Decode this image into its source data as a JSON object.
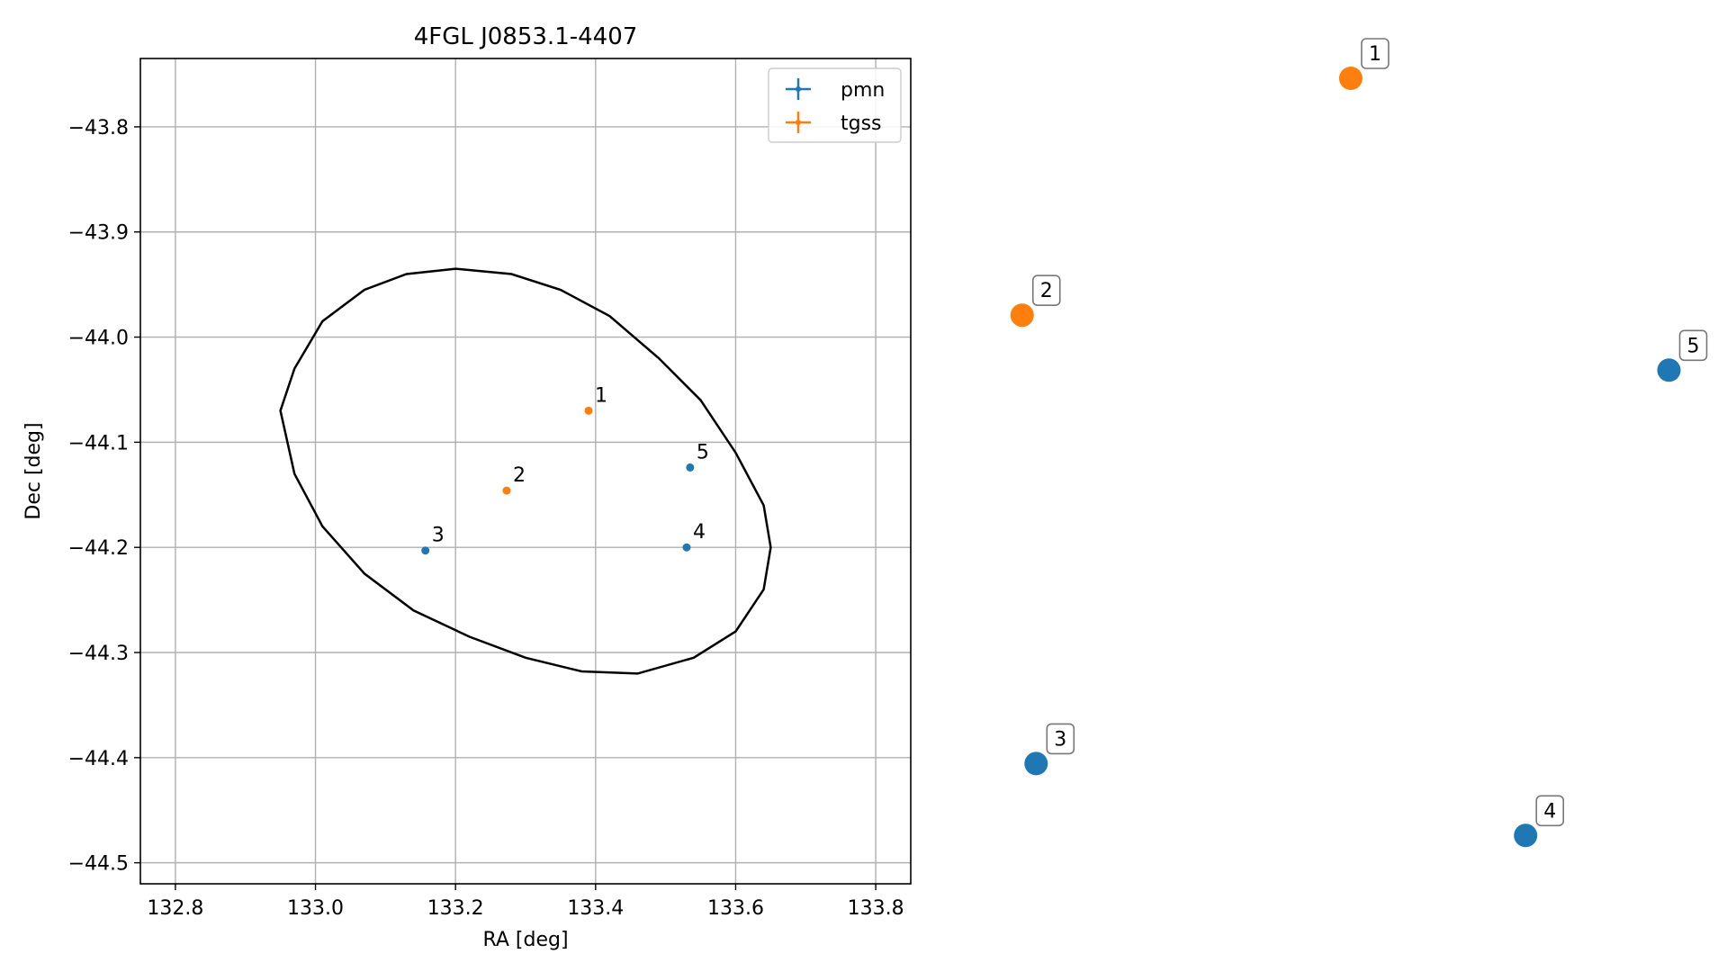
{
  "chart_data": [
    {
      "type": "scatter",
      "title": "4FGL J0853.1-4407",
      "xlabel": "RA [deg]",
      "ylabel": "Dec [deg]",
      "xlim": [
        132.75,
        133.85
      ],
      "ylim": [
        -44.52,
        -43.735
      ],
      "xticks": [
        132.8,
        133.0,
        133.2,
        133.4,
        133.6,
        133.8
      ],
      "xtick_labels": [
        "132.8",
        "133.0",
        "133.2",
        "133.4",
        "133.6",
        "133.8"
      ],
      "yticks": [
        -43.8,
        -43.9,
        -44.0,
        -44.1,
        -44.2,
        -44.3,
        -44.4,
        -44.5
      ],
      "ytick_labels": [
        "−43.8",
        "−43.9",
        "−44.0",
        "−44.1",
        "−44.2",
        "−44.3",
        "−44.4",
        "−44.5"
      ],
      "grid": true,
      "legend_position": "top-right",
      "ellipse": {
        "points": [
          [
            132.95,
            -44.07
          ],
          [
            132.97,
            -44.03
          ],
          [
            133.01,
            -43.985
          ],
          [
            133.07,
            -43.955
          ],
          [
            133.13,
            -43.94
          ],
          [
            133.2,
            -43.935
          ],
          [
            133.28,
            -43.94
          ],
          [
            133.35,
            -43.955
          ],
          [
            133.42,
            -43.98
          ],
          [
            133.49,
            -44.02
          ],
          [
            133.55,
            -44.06
          ],
          [
            133.6,
            -44.11
          ],
          [
            133.64,
            -44.16
          ],
          [
            133.65,
            -44.2
          ],
          [
            133.64,
            -44.24
          ],
          [
            133.6,
            -44.28
          ],
          [
            133.54,
            -44.305
          ],
          [
            133.46,
            -44.32
          ],
          [
            133.38,
            -44.318
          ],
          [
            133.3,
            -44.305
          ],
          [
            133.22,
            -44.285
          ],
          [
            133.14,
            -44.26
          ],
          [
            133.07,
            -44.225
          ],
          [
            133.01,
            -44.18
          ],
          [
            132.97,
            -44.13
          ]
        ],
        "color": "#000000"
      },
      "series": [
        {
          "name": "pmn",
          "color": "#1f77b4",
          "points": [
            {
              "label": "3",
              "x": 133.157,
              "y": -44.203
            },
            {
              "label": "4",
              "x": 133.53,
              "y": -44.2
            },
            {
              "label": "5",
              "x": 133.535,
              "y": -44.124
            }
          ]
        },
        {
          "name": "tgss",
          "color": "#ff7f0e",
          "points": [
            {
              "label": "1",
              "x": 133.39,
              "y": -44.07
            },
            {
              "label": "2",
              "x": 133.273,
              "y": -44.146
            }
          ]
        }
      ]
    },
    {
      "type": "scatter",
      "title": "",
      "axes_visible": false,
      "series": [
        {
          "name": "",
          "color": "#ff7f0e",
          "points": [
            {
              "label": "1",
              "x": 0.48,
              "y": 0.95
            },
            {
              "label": "2",
              "x": 0.01,
              "y": 0.67
            }
          ]
        },
        {
          "name": "",
          "color": "#1f77b4",
          "points": [
            {
              "label": "3",
              "x": 0.03,
              "y": 0.14
            },
            {
              "label": "4",
              "x": 0.73,
              "y": 0.055
            },
            {
              "label": "5",
              "x": 0.935,
              "y": 0.605
            }
          ]
        }
      ]
    }
  ]
}
